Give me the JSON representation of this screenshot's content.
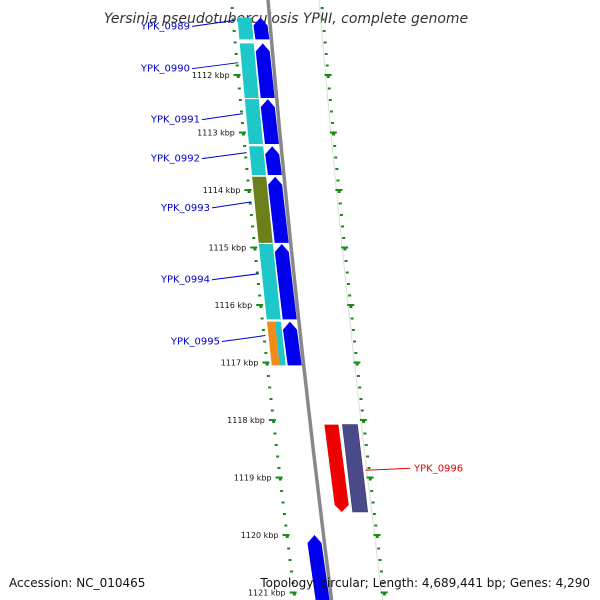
{
  "title": "Yersinia pseudotuberculosis YPIII, complete genome",
  "footer": {
    "accession": "Accession: NC_010465",
    "topology": "Topology: circular; Length: 4,689,441 bp; Genes: 4,290"
  },
  "colors": {
    "backbone": "#888888",
    "tick": "#1a8a1a",
    "forward_gene": "#0000ee",
    "reverse_gene": "#4a4a8a",
    "highlight_gene": "#ee0000",
    "cog_cyan": "#1ec8c8",
    "cog_olive": "#6b7f1a",
    "cog_orange": "#f08c1a",
    "label_default": "#0000cc",
    "label_highlight": "#ee0000"
  },
  "scale": {
    "unit": "kbp",
    "labels": [
      "1112 kbp",
      "1113 kbp",
      "1114 kbp",
      "1115 kbp",
      "1116 kbp",
      "1117 kbp",
      "1118 kbp",
      "1119 kbp",
      "1120 kbp",
      "1121 kbp"
    ]
  },
  "genes": [
    {
      "id": "YPK_0989",
      "strand": "+",
      "start_kbp": 1111.0,
      "end_kbp": 1111.38,
      "cog_color": "#1ec8c8",
      "highlight": false
    },
    {
      "id": "YPK_0990",
      "strand": "+",
      "start_kbp": 1111.45,
      "end_kbp": 1112.4,
      "cog_color": "#1ec8c8",
      "highlight": false
    },
    {
      "id": "YPK_0991",
      "strand": "+",
      "start_kbp": 1112.42,
      "end_kbp": 1113.2,
      "cog_color": "#1ec8c8",
      "highlight": false
    },
    {
      "id": "YPK_0992",
      "strand": "+",
      "start_kbp": 1113.24,
      "end_kbp": 1113.74,
      "cog_color": "#1ec8c8",
      "highlight": false
    },
    {
      "id": "YPK_0993",
      "strand": "+",
      "start_kbp": 1113.77,
      "end_kbp": 1114.92,
      "cog_color": "#6b7f1a",
      "highlight": false
    },
    {
      "id": "YPK_0994",
      "strand": "+",
      "start_kbp": 1114.94,
      "end_kbp": 1116.25,
      "cog_color": "#1ec8c8",
      "highlight": false
    },
    {
      "id": "YPK_0995",
      "strand": "+",
      "start_kbp": 1116.29,
      "end_kbp": 1117.05,
      "cog_color": "#f08c1a",
      "cog_color2": "#1ec8c8",
      "highlight": false
    },
    {
      "id": "YPK_0996",
      "strand": "-",
      "start_kbp": 1118.08,
      "end_kbp": 1119.6,
      "cog_color": "#4a4a8a",
      "highlight": true
    },
    {
      "id": "",
      "strand": "+",
      "start_kbp": 1120.0,
      "end_kbp": 1121.3,
      "cog_color": "",
      "highlight": false
    }
  ]
}
